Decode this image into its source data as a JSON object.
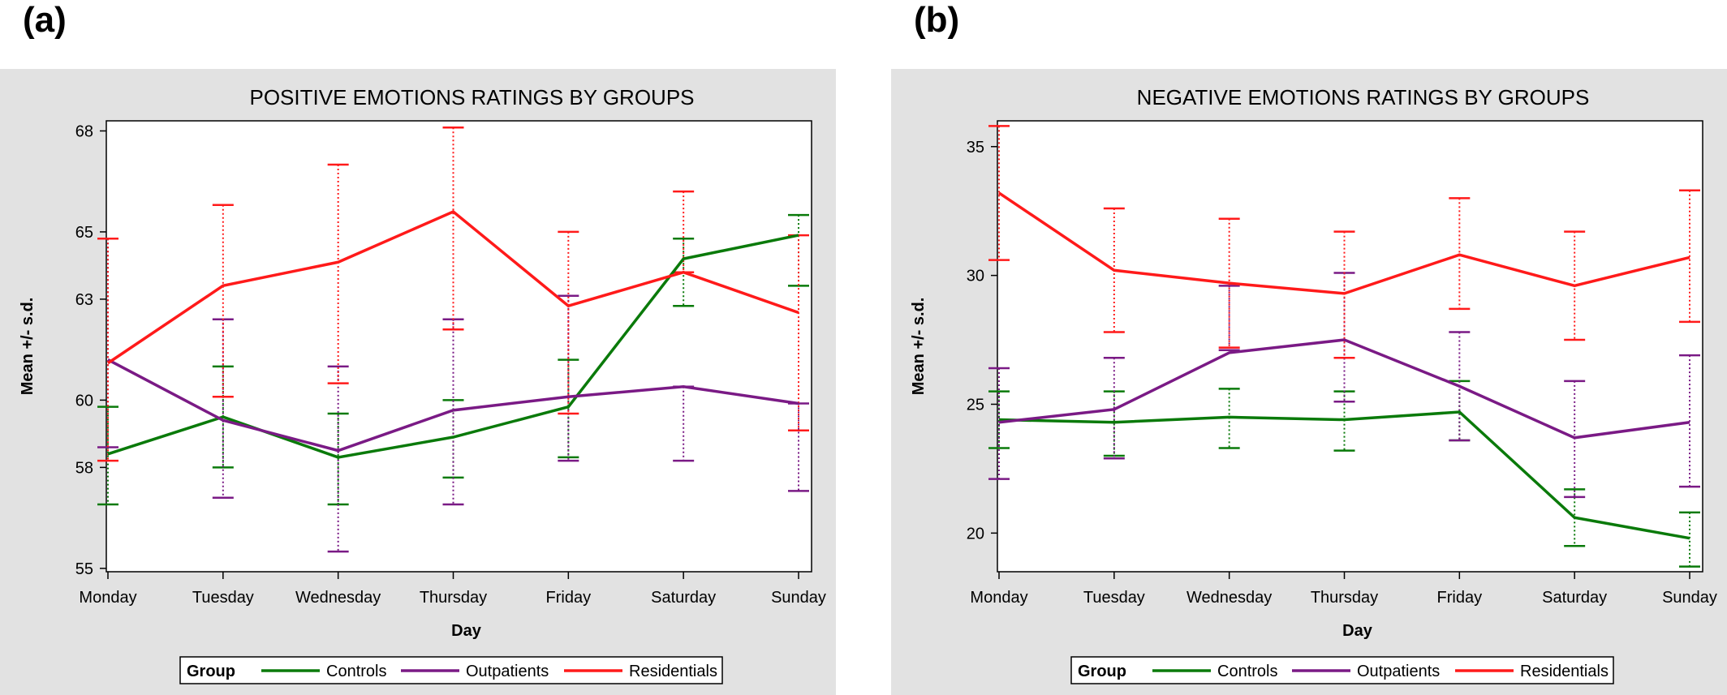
{
  "panels": [
    {
      "label": "(a)"
    },
    {
      "label": "(b)"
    }
  ],
  "colors": {
    "Controls": "#0a7a0a",
    "Outpatients": "#7a1a85",
    "Residentials": "#ff1a1a"
  },
  "chart_data": [
    {
      "type": "line",
      "title": "POSITIVE EMOTIONS RATINGS BY GROUPS",
      "xlabel": "Day",
      "ylabel": "Mean +/- s.d.",
      "categories": [
        "Monday",
        "Tuesday",
        "Wednesday",
        "Thursday",
        "Friday",
        "Saturday",
        "Sunday"
      ],
      "ylim": [
        54.9,
        68.3
      ],
      "yticks": [
        55,
        58,
        60,
        63,
        65,
        68
      ],
      "ytick_labels": [
        "55",
        "58",
        "60",
        "63",
        "65",
        "68"
      ],
      "legend_title": "Group",
      "legend_position": "bottom",
      "series": [
        {
          "name": "Controls",
          "values": [
            58.4,
            59.5,
            58.3,
            58.9,
            59.8,
            64.2,
            64.9
          ],
          "upper": [
            59.8,
            61.0,
            59.6,
            60.0,
            61.2,
            64.8,
            65.5
          ],
          "lower": [
            56.9,
            58.0,
            56.9,
            57.7,
            58.3,
            62.8,
            63.4
          ]
        },
        {
          "name": "Outpatients",
          "values": [
            61.2,
            59.4,
            58.5,
            59.7,
            60.1,
            60.4,
            59.9
          ],
          "upper": [
            64.8,
            62.4,
            61.0,
            62.4,
            63.1,
            60.4,
            59.9
          ],
          "lower": [
            58.6,
            57.1,
            55.5,
            56.9,
            58.2,
            58.2,
            57.3
          ]
        },
        {
          "name": "Residentials",
          "values": [
            61.1,
            63.4,
            64.1,
            65.6,
            62.8,
            63.8,
            62.6
          ],
          "upper": [
            64.8,
            65.8,
            67.0,
            68.1,
            65.0,
            66.2,
            64.9
          ],
          "lower": [
            58.2,
            60.1,
            60.5,
            62.1,
            59.6,
            63.8,
            59.1
          ]
        }
      ]
    },
    {
      "type": "line",
      "title": "NEGATIVE EMOTIONS RATINGS BY GROUPS",
      "xlabel": "Day",
      "ylabel": "Mean +/- s.d.",
      "categories": [
        "Monday",
        "Tuesday",
        "Wednesday",
        "Thursday",
        "Friday",
        "Saturday",
        "Sunday"
      ],
      "ylim": [
        18.5,
        36.0
      ],
      "yticks": [
        20,
        25,
        30,
        35
      ],
      "ytick_labels": [
        "20",
        "25",
        "30",
        "35"
      ],
      "legend_title": "Group",
      "legend_position": "bottom",
      "series": [
        {
          "name": "Controls",
          "values": [
            24.4,
            24.3,
            24.5,
            24.4,
            24.7,
            20.6,
            19.8
          ],
          "upper": [
            25.5,
            25.5,
            25.6,
            25.5,
            25.9,
            21.7,
            20.8
          ],
          "lower": [
            23.3,
            23.0,
            23.3,
            23.2,
            23.6,
            19.5,
            18.7
          ]
        },
        {
          "name": "Outpatients",
          "values": [
            24.3,
            24.8,
            27.0,
            27.5,
            25.7,
            23.7,
            24.3
          ],
          "upper": [
            26.4,
            26.8,
            29.6,
            30.1,
            27.8,
            25.9,
            26.9
          ],
          "lower": [
            22.1,
            22.9,
            27.1,
            25.1,
            23.6,
            21.4,
            21.8
          ]
        },
        {
          "name": "Residentials",
          "values": [
            33.2,
            30.2,
            29.7,
            29.3,
            30.8,
            29.6,
            30.7
          ],
          "upper": [
            35.8,
            32.6,
            32.2,
            31.7,
            33.0,
            31.7,
            33.3
          ],
          "lower": [
            30.6,
            27.8,
            27.2,
            26.8,
            28.7,
            27.5,
            28.2
          ]
        }
      ]
    }
  ]
}
